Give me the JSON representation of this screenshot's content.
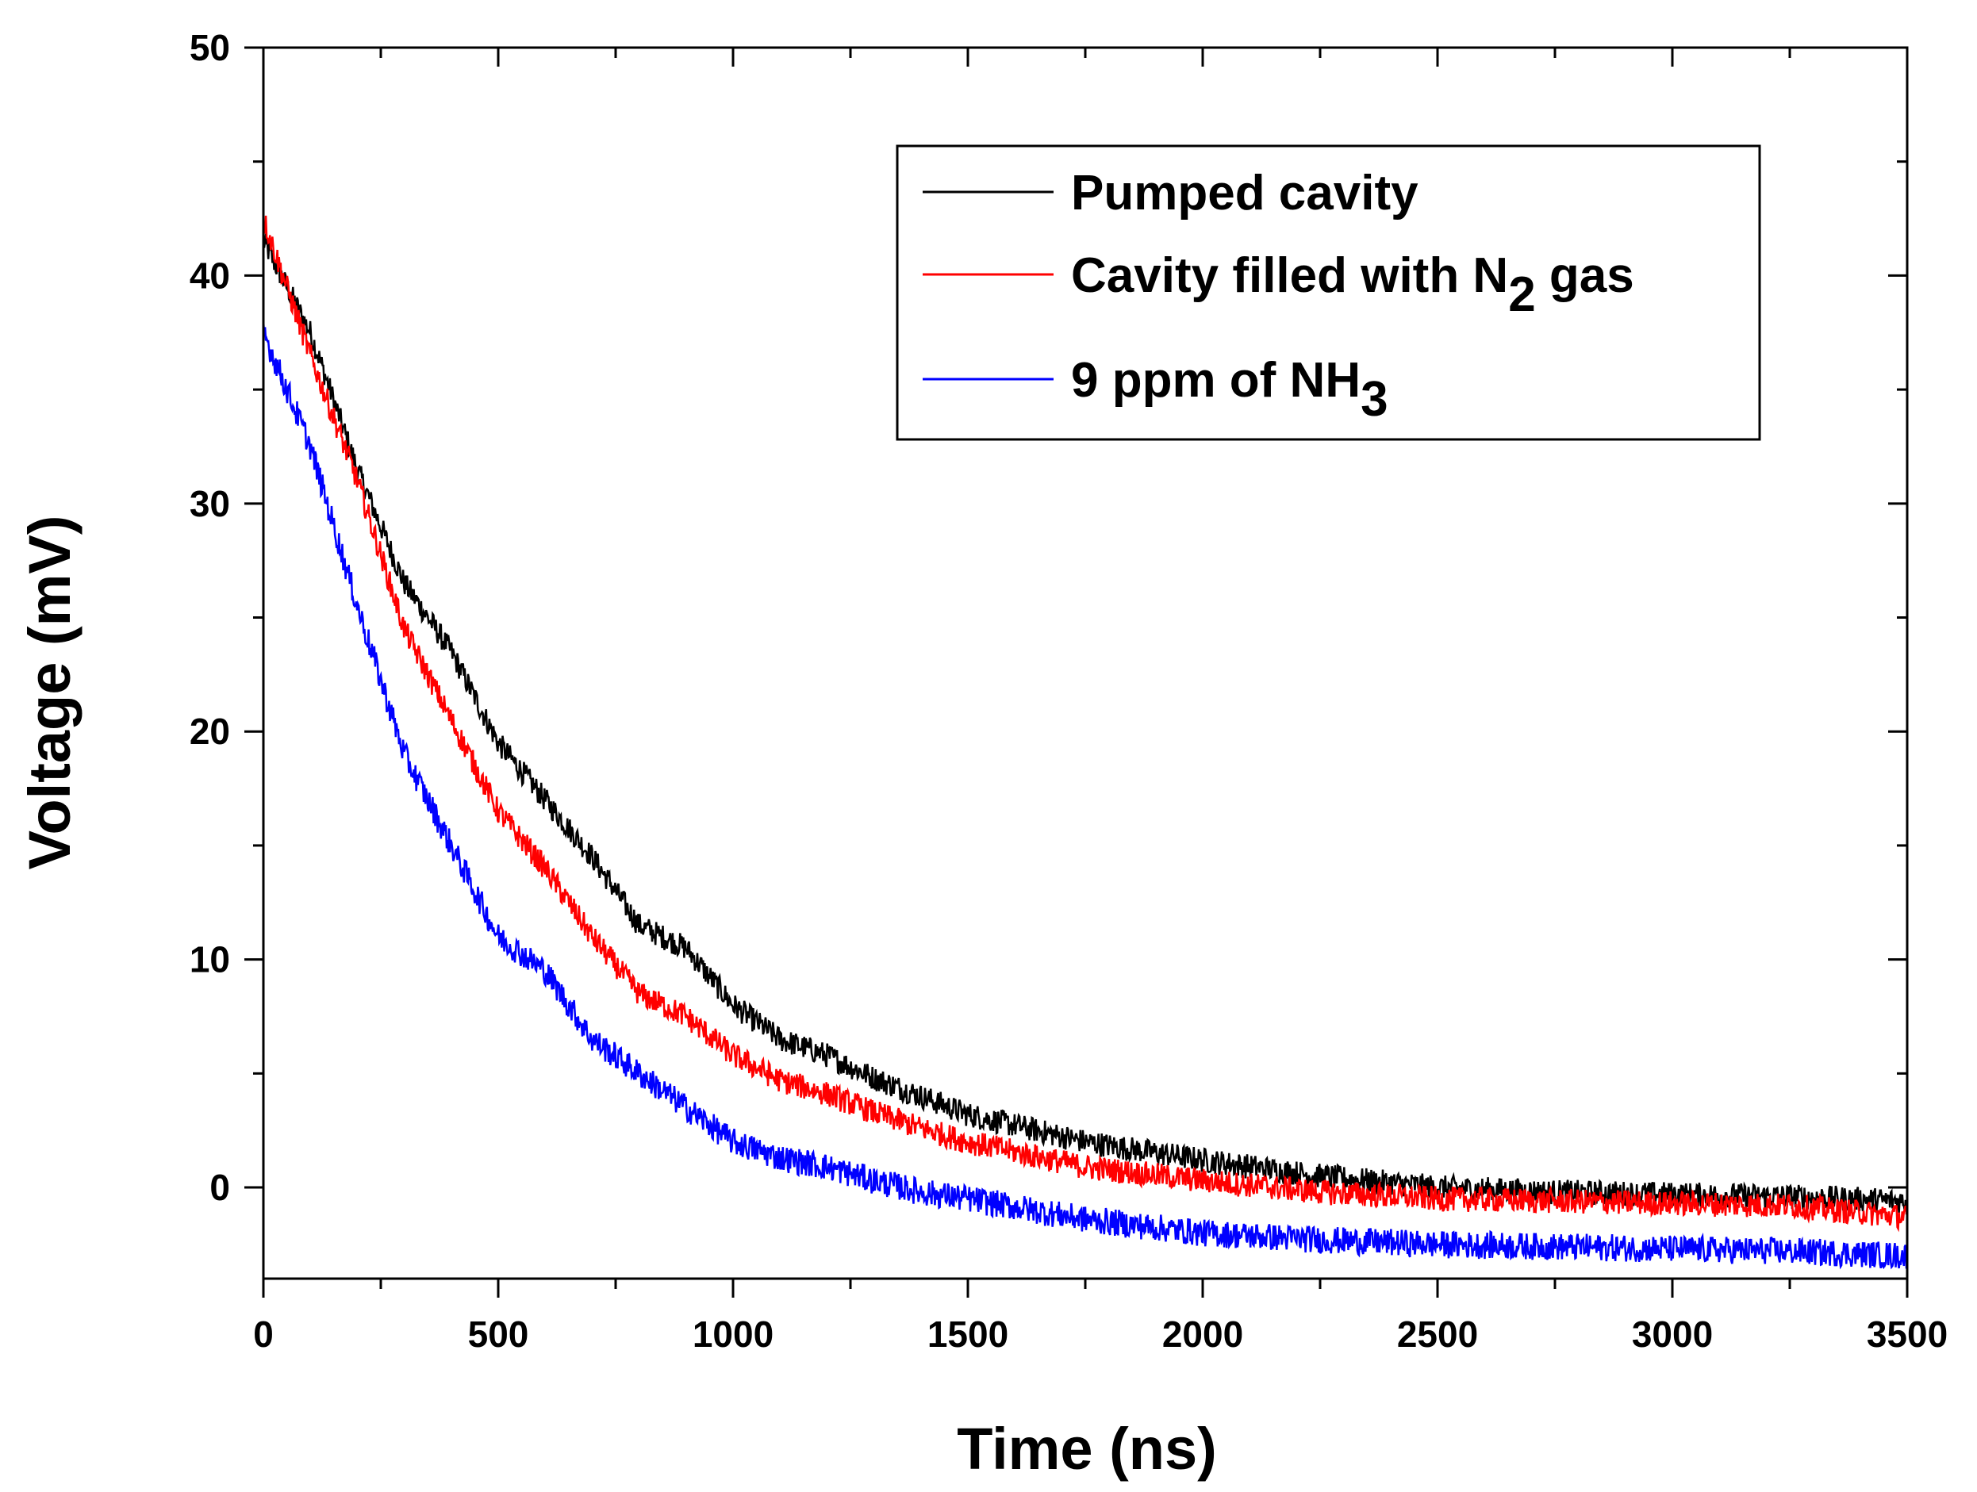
{
  "chart_data": {
    "type": "line",
    "title": "",
    "xlabel": "Time (ns)",
    "ylabel": "Voltage (mV)",
    "xlim": [
      0,
      3500
    ],
    "ylim": [
      -4,
      50
    ],
    "xticks": [
      0,
      500,
      1000,
      1500,
      2000,
      2500,
      3000,
      3500
    ],
    "yticks": [
      0,
      10,
      20,
      30,
      40,
      50
    ],
    "xtick_labels": [
      "0",
      "500",
      "1000",
      "1500",
      "2000",
      "2500",
      "3000",
      "3500"
    ],
    "ytick_labels": [
      "0",
      "10",
      "20",
      "30",
      "40",
      "50"
    ],
    "legend_position": "top-right",
    "series": [
      {
        "name": "Pumped cavity",
        "legend": {
          "main": "Pumped cavity",
          "sub": "",
          "suffix": ""
        },
        "color": "#000000",
        "x": [
          0,
          100,
          200,
          300,
          400,
          500,
          600,
          700,
          800,
          900,
          1000,
          1100,
          1200,
          1300,
          1400,
          1500,
          1750,
          2000,
          2250,
          2500,
          2750,
          3000,
          3250,
          3500
        ],
        "y": [
          41.5,
          37.5,
          31.5,
          26.5,
          23.5,
          19.5,
          17,
          14.5,
          11.5,
          10.5,
          8,
          6.5,
          5.8,
          4.8,
          4,
          3.2,
          2,
          1.2,
          0.5,
          0,
          -0.2,
          -0.3,
          -0.4,
          -0.6
        ],
        "noise": 0.55
      },
      {
        "name": "Cavity filled with N2 gas",
        "legend": {
          "main": "Cavity filled with N",
          "sub": "2",
          "suffix": " gas"
        },
        "color": "#ff0000",
        "x": [
          0,
          100,
          200,
          300,
          400,
          500,
          600,
          700,
          800,
          900,
          1000,
          1100,
          1200,
          1300,
          1400,
          1500,
          1750,
          2000,
          2250,
          2500,
          2750,
          3000,
          3250,
          3500
        ],
        "y": [
          42.5,
          36.5,
          31,
          24.5,
          20.5,
          16.5,
          14,
          11,
          8.5,
          7.5,
          5.8,
          4.7,
          4.1,
          3.3,
          2.6,
          2,
          0.9,
          0.3,
          -0.2,
          -0.5,
          -0.6,
          -0.7,
          -0.8,
          -1.3
        ],
        "noise": 0.55
      },
      {
        "name": "9 ppm of NH3",
        "legend": {
          "main": "9 ppm of NH",
          "sub": "3",
          "suffix": ""
        },
        "color": "#0000ff",
        "x": [
          0,
          100,
          200,
          300,
          400,
          500,
          600,
          700,
          800,
          900,
          1000,
          1100,
          1200,
          1300,
          1400,
          1500,
          1750,
          2000,
          2250,
          2500,
          2750,
          3000,
          3250,
          3500
        ],
        "y": [
          37.5,
          32.5,
          25.5,
          19,
          15,
          11,
          9.5,
          6.5,
          5,
          3.5,
          2,
          1.3,
          0.9,
          0.3,
          -0.2,
          -0.5,
          -1.4,
          -2,
          -2.3,
          -2.5,
          -2.6,
          -2.7,
          -2.8,
          -3
        ],
        "noise": 0.6
      }
    ]
  }
}
